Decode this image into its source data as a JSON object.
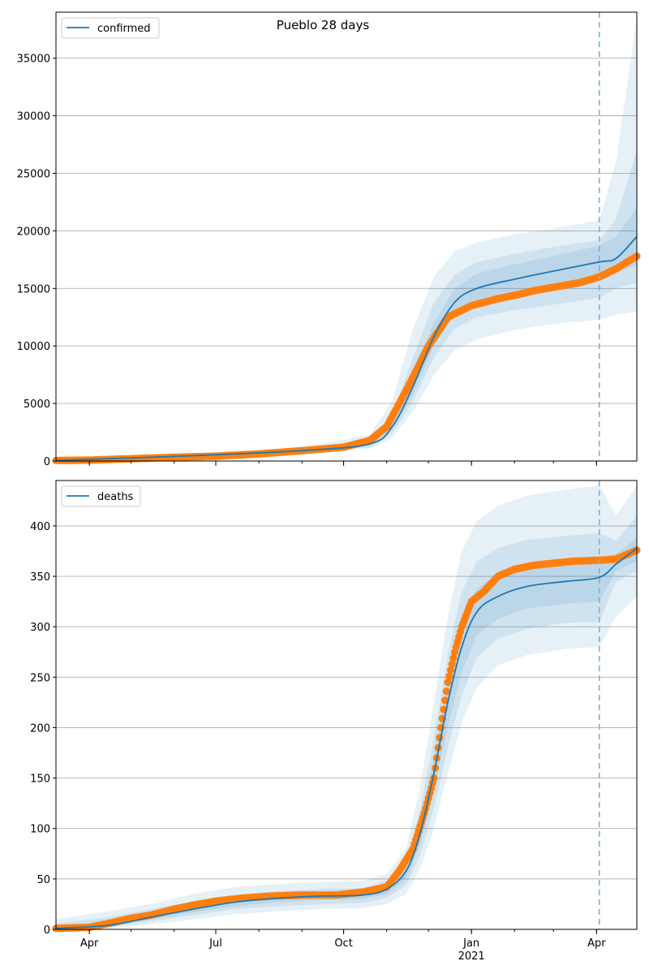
{
  "title": "Pueblo 28 days",
  "colors": {
    "model": "#1f77b4",
    "observed": "#ff7f0e",
    "band": "#1f77b4",
    "grid": "#b0b0b0",
    "forecast_line": "#7fafd0"
  },
  "x_axis": {
    "range": [
      "2020-03-08",
      "2021-04-30"
    ],
    "ticks": [
      {
        "date": "2020-04-01",
        "label": "Apr"
      },
      {
        "date": "2020-07-01",
        "label": "Jul"
      },
      {
        "date": "2020-10-01",
        "label": "Oct"
      },
      {
        "date": "2021-01-01",
        "label": "Jan"
      },
      {
        "date": "2021-04-01",
        "label": "Apr"
      }
    ],
    "year_label": "2021",
    "year_label_date": "2021-01-01"
  },
  "forecast_start": "2021-04-03",
  "chart_data": [
    {
      "type": "line",
      "title": "Pueblo 28 days",
      "legend": "confirmed",
      "legend_position": "top-left",
      "grid": true,
      "ylim": [
        0,
        39000
      ],
      "yticks": [
        0,
        5000,
        10000,
        15000,
        20000,
        25000,
        30000,
        35000
      ],
      "model": {
        "x": [
          "2020-03-08",
          "2020-06-01",
          "2020-09-01",
          "2020-10-20",
          "2020-11-05",
          "2020-11-20",
          "2020-12-05",
          "2020-12-20",
          "2021-01-05",
          "2021-02-01",
          "2021-03-01",
          "2021-04-03",
          "2021-04-15",
          "2021-04-30"
        ],
        "y": [
          50,
          400,
          900,
          1500,
          3000,
          6500,
          10800,
          13800,
          15000,
          15800,
          16500,
          17300,
          17600,
          19500
        ],
        "bands": [
          {
            "lower": [
              30,
              300,
              750,
              1100,
              2000,
              4300,
              7500,
              9600,
              10600,
              11400,
              11900,
              12300,
              12700,
              13000
            ],
            "upper": [
              80,
              600,
              1150,
              2300,
              5200,
              11500,
              16000,
              18200,
              19000,
              19700,
              20200,
              20900,
              26000,
              38500
            ]
          },
          {
            "lower": [
              40,
              340,
              800,
              1200,
              2400,
              5200,
              9000,
              11500,
              12500,
              13100,
              13600,
              14200,
              15000,
              15500
            ],
            "upper": [
              65,
              500,
              1050,
              1900,
              4000,
              9000,
              13800,
              16200,
              17300,
              18000,
              18600,
              19200,
              21000,
              27000
            ]
          },
          {
            "lower": [
              45,
              370,
              850,
              1350,
              2700,
              5800,
              10000,
              12700,
              13800,
              14500,
              15100,
              15800,
              16400,
              17000
            ],
            "upper": [
              58,
              440,
              960,
              1700,
              3400,
              7600,
              12000,
              15000,
              16300,
              17100,
              17800,
              18700,
              19500,
              22000
            ]
          }
        ]
      },
      "observed": {
        "x": [
          "2020-03-08",
          "2020-04-01",
          "2020-05-01",
          "2020-06-01",
          "2020-07-01",
          "2020-08-01",
          "2020-09-01",
          "2020-10-01",
          "2020-10-20",
          "2020-11-01",
          "2020-11-10",
          "2020-11-20",
          "2020-12-01",
          "2020-12-15",
          "2021-01-01",
          "2021-01-20",
          "2021-02-05",
          "2021-02-15",
          "2021-03-01",
          "2021-03-20",
          "2021-04-03",
          "2021-04-15",
          "2021-04-30"
        ],
        "y": [
          50,
          80,
          200,
          330,
          420,
          620,
          900,
          1200,
          1800,
          3000,
          5000,
          7300,
          10000,
          12500,
          13500,
          14100,
          14500,
          14800,
          15100,
          15500,
          16000,
          16700,
          17800
        ]
      }
    },
    {
      "type": "line",
      "legend": "deaths",
      "legend_position": "top-left",
      "grid": true,
      "ylim": [
        0,
        445
      ],
      "yticks": [
        0,
        50,
        100,
        150,
        200,
        250,
        300,
        350,
        400
      ],
      "model": {
        "x": [
          "2020-03-08",
          "2020-04-15",
          "2020-05-15",
          "2020-06-15",
          "2020-07-15",
          "2020-08-15",
          "2020-09-15",
          "2020-10-15",
          "2020-11-01",
          "2020-11-15",
          "2020-11-25",
          "2020-12-05",
          "2020-12-15",
          "2020-12-25",
          "2021-01-05",
          "2021-01-20",
          "2021-02-10",
          "2021-03-10",
          "2021-04-03",
          "2021-04-15",
          "2021-04-30"
        ],
        "y": [
          1,
          4,
          12,
          20,
          27,
          31,
          33,
          34,
          40,
          58,
          95,
          155,
          225,
          280,
          315,
          330,
          340,
          345,
          349,
          362,
          378
        ],
        "bands": [
          {
            "lower": [
              0,
              1,
              5,
              10,
              15,
              18,
              20,
              21,
              25,
              35,
              60,
              100,
              155,
              205,
              240,
              262,
              272,
              278,
              280,
              310,
              330
            ],
            "upper": [
              10,
              18,
              25,
              35,
              42,
              45,
              47,
              48,
              55,
              80,
              140,
              225,
              310,
              375,
              405,
              420,
              430,
              436,
              440,
              410,
              440
            ]
          },
          {
            "lower": [
              0,
              2,
              8,
              14,
              20,
              23,
              25,
              26,
              31,
              44,
              73,
              120,
              180,
              232,
              270,
              288,
              298,
              304,
              305,
              345,
              355
            ],
            "upper": [
              6,
              12,
              20,
              28,
              34,
              38,
              40,
              41,
              48,
              70,
              118,
              190,
              272,
              335,
              365,
              378,
              386,
              390,
              393,
              385,
              410
            ]
          },
          {
            "lower": [
              0,
              3,
              10,
              17,
              23,
              27,
              29,
              30,
              35,
              50,
              83,
              138,
              202,
              255,
              292,
              308,
              318,
              323,
              325,
              355,
              365
            ],
            "upper": [
              3,
              7,
              15,
              23,
              30,
              34,
              36,
              37,
              44,
              64,
              105,
              170,
              245,
              305,
              338,
              352,
              360,
              365,
              368,
              372,
              388
            ]
          }
        ]
      },
      "observed": {
        "x": [
          "2020-03-08",
          "2020-04-01",
          "2020-04-15",
          "2020-05-01",
          "2020-05-15",
          "2020-06-01",
          "2020-06-15",
          "2020-07-01",
          "2020-07-20",
          "2020-08-10",
          "2020-09-01",
          "2020-09-25",
          "2020-10-15",
          "2020-11-01",
          "2020-11-10",
          "2020-11-20",
          "2020-11-28",
          "2020-12-05",
          "2020-12-10",
          "2020-12-15",
          "2020-12-20",
          "2020-12-25",
          "2021-01-01",
          "2021-01-10",
          "2021-01-20",
          "2021-02-01",
          "2021-02-15",
          "2021-03-01",
          "2021-03-15",
          "2021-04-03",
          "2021-04-15",
          "2021-04-30"
        ],
        "y": [
          1,
          2,
          6,
          11,
          14,
          20,
          24,
          28,
          31,
          33,
          34,
          34,
          37,
          42,
          58,
          80,
          115,
          150,
          200,
          245,
          275,
          300,
          325,
          335,
          350,
          357,
          361,
          363,
          365,
          366,
          367,
          376
        ]
      }
    }
  ]
}
